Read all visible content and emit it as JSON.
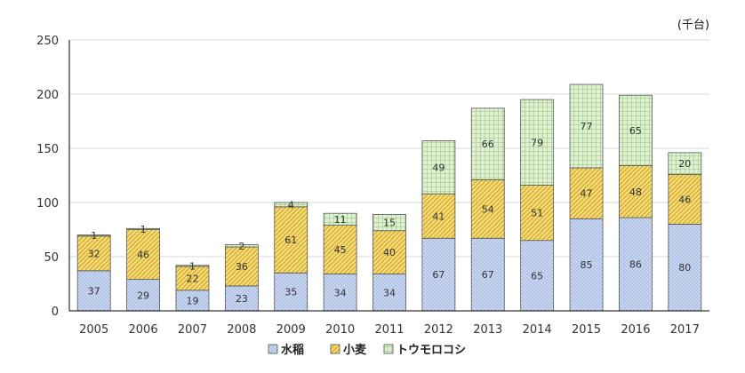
{
  "chart_data": {
    "type": "bar",
    "stacked": true,
    "unit": "(千台)",
    "categories": [
      "2005",
      "2006",
      "2007",
      "2008",
      "2009",
      "2010",
      "2011",
      "2012",
      "2013",
      "2014",
      "2015",
      "2016",
      "2017"
    ],
    "series": [
      {
        "name": "水稲",
        "color": "#c9d6f0",
        "values": [
          37,
          29,
          19,
          23,
          35,
          34,
          34,
          67,
          67,
          65,
          85,
          86,
          80
        ]
      },
      {
        "name": "小麦",
        "color": "#f6dc78",
        "values": [
          32,
          46,
          22,
          36,
          61,
          45,
          40,
          41,
          54,
          51,
          47,
          48,
          46
        ]
      },
      {
        "name": "トウモロコシ",
        "color": "#c8e6b3",
        "values": [
          1,
          1,
          1,
          2,
          4,
          11,
          15,
          49,
          66,
          79,
          77,
          65,
          20
        ]
      }
    ],
    "ylim": [
      0,
      250
    ],
    "yticks": [
      0,
      50,
      100,
      150,
      200,
      250
    ],
    "grid": true,
    "legend": "bottom"
  }
}
